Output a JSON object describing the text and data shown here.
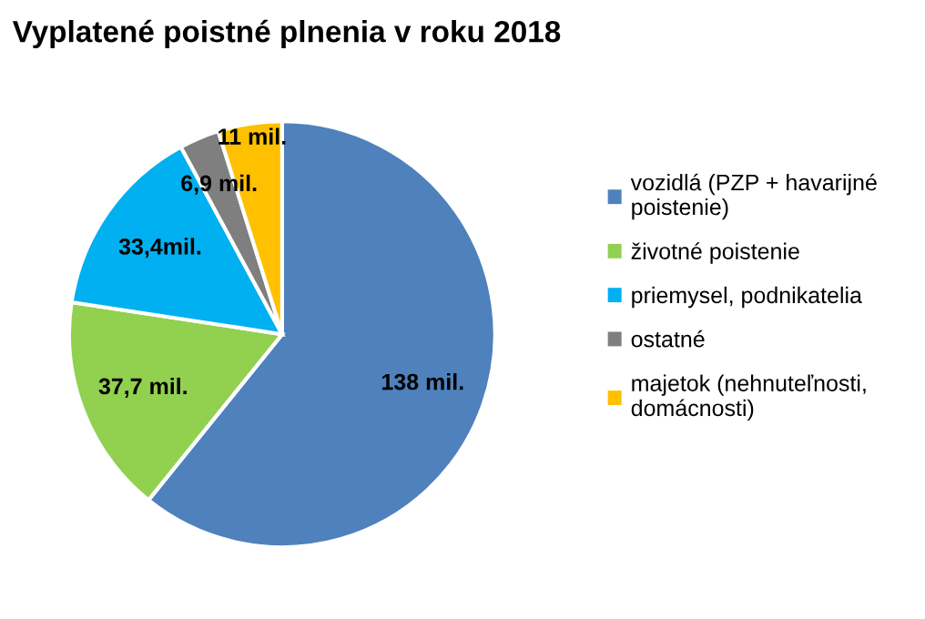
{
  "chart_data": {
    "type": "pie",
    "title": "Vyplatené poistné plnenia v roku 2018",
    "categories": [
      "vozidlá (PZP + havarijné\npoistenie)",
      "životné poistenie",
      "priemysel, podnikatelia",
      "ostatné",
      "majetok (nehnuteľnosti,\ndomácnosti)"
    ],
    "values": [
      138,
      37.7,
      33.4,
      6.9,
      11
    ],
    "value_labels": [
      "138 mil.",
      "37,7 mil.",
      "33,4mil.",
      "6,9 mil.",
      "11 mil."
    ],
    "colors": [
      "#4f81bd",
      "#92d050",
      "#00b0f0",
      "#7f7f7f",
      "#ffc000"
    ],
    "legend": "right"
  }
}
